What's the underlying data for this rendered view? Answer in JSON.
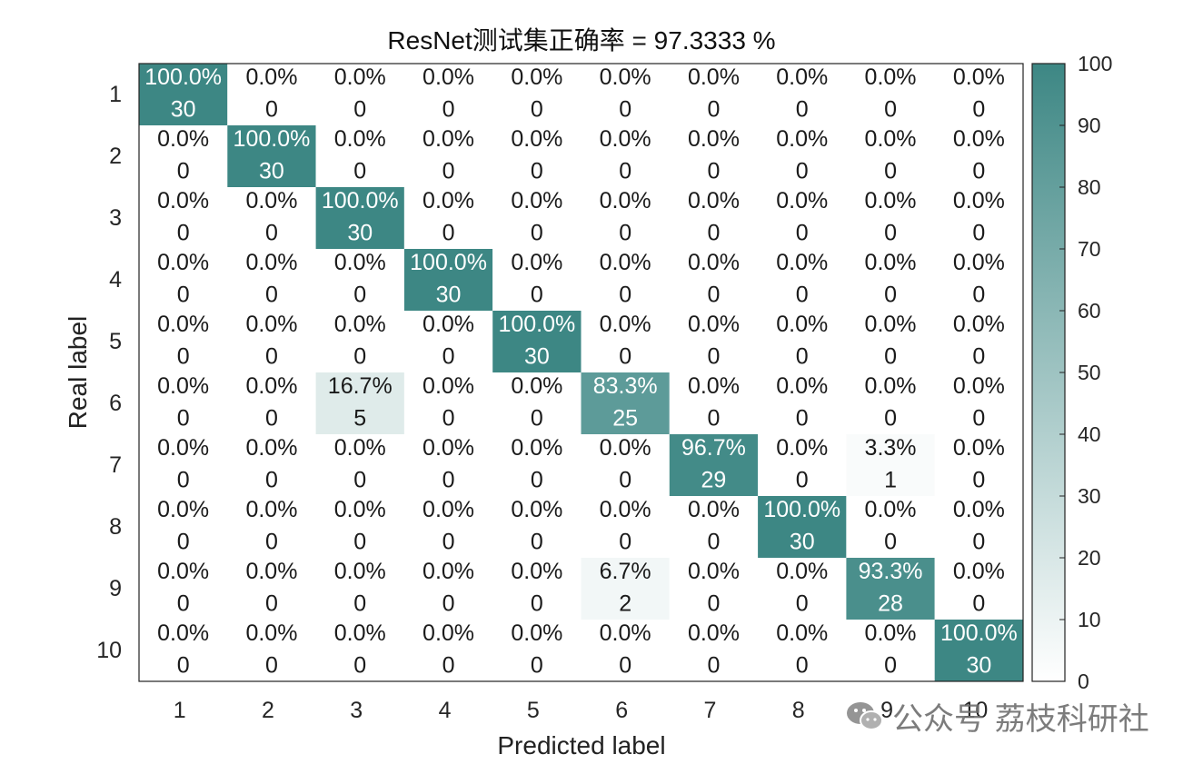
{
  "chart_data": {
    "type": "heatmap",
    "title": "ResNet测试集正确率 = 97.3333 %",
    "xlabel": "Predicted label",
    "ylabel": "Real label",
    "x_categories": [
      "1",
      "2",
      "3",
      "4",
      "5",
      "6",
      "7",
      "8",
      "9",
      "10"
    ],
    "y_categories": [
      "1",
      "2",
      "3",
      "4",
      "5",
      "6",
      "7",
      "8",
      "9",
      "10"
    ],
    "counts": [
      [
        30,
        0,
        0,
        0,
        0,
        0,
        0,
        0,
        0,
        0
      ],
      [
        0,
        30,
        0,
        0,
        0,
        0,
        0,
        0,
        0,
        0
      ],
      [
        0,
        0,
        30,
        0,
        0,
        0,
        0,
        0,
        0,
        0
      ],
      [
        0,
        0,
        0,
        30,
        0,
        0,
        0,
        0,
        0,
        0
      ],
      [
        0,
        0,
        0,
        0,
        30,
        0,
        0,
        0,
        0,
        0
      ],
      [
        0,
        0,
        5,
        0,
        0,
        25,
        0,
        0,
        0,
        0
      ],
      [
        0,
        0,
        0,
        0,
        0,
        0,
        29,
        0,
        1,
        0
      ],
      [
        0,
        0,
        0,
        0,
        0,
        0,
        0,
        30,
        0,
        0
      ],
      [
        0,
        0,
        0,
        0,
        0,
        2,
        0,
        0,
        28,
        0
      ],
      [
        0,
        0,
        0,
        0,
        0,
        0,
        0,
        0,
        0,
        30
      ]
    ],
    "percents": [
      [
        "100.0%",
        "0.0%",
        "0.0%",
        "0.0%",
        "0.0%",
        "0.0%",
        "0.0%",
        "0.0%",
        "0.0%",
        "0.0%"
      ],
      [
        "0.0%",
        "100.0%",
        "0.0%",
        "0.0%",
        "0.0%",
        "0.0%",
        "0.0%",
        "0.0%",
        "0.0%",
        "0.0%"
      ],
      [
        "0.0%",
        "0.0%",
        "100.0%",
        "0.0%",
        "0.0%",
        "0.0%",
        "0.0%",
        "0.0%",
        "0.0%",
        "0.0%"
      ],
      [
        "0.0%",
        "0.0%",
        "0.0%",
        "100.0%",
        "0.0%",
        "0.0%",
        "0.0%",
        "0.0%",
        "0.0%",
        "0.0%"
      ],
      [
        "0.0%",
        "0.0%",
        "0.0%",
        "0.0%",
        "100.0%",
        "0.0%",
        "0.0%",
        "0.0%",
        "0.0%",
        "0.0%"
      ],
      [
        "0.0%",
        "0.0%",
        "16.7%",
        "0.0%",
        "0.0%",
        "83.3%",
        "0.0%",
        "0.0%",
        "0.0%",
        "0.0%"
      ],
      [
        "0.0%",
        "0.0%",
        "0.0%",
        "0.0%",
        "0.0%",
        "0.0%",
        "96.7%",
        "0.0%",
        "3.3%",
        "0.0%"
      ],
      [
        "0.0%",
        "0.0%",
        "0.0%",
        "0.0%",
        "0.0%",
        "0.0%",
        "0.0%",
        "100.0%",
        "0.0%",
        "0.0%"
      ],
      [
        "0.0%",
        "0.0%",
        "0.0%",
        "0.0%",
        "0.0%",
        "6.7%",
        "0.0%",
        "0.0%",
        "93.3%",
        "0.0%"
      ],
      [
        "0.0%",
        "0.0%",
        "0.0%",
        "0.0%",
        "0.0%",
        "0.0%",
        "0.0%",
        "0.0%",
        "0.0%",
        "100.0%"
      ]
    ],
    "colorbar": {
      "range": [
        0,
        100
      ],
      "ticks": [
        "0",
        "10",
        "20",
        "30",
        "40",
        "50",
        "60",
        "70",
        "80",
        "90",
        "100"
      ],
      "low_color": "#ffffff",
      "high_color": "#3d8784"
    },
    "grid": false
  },
  "watermark": {
    "text": "公众号 荔枝科研社",
    "icon": "wechat-icon"
  }
}
